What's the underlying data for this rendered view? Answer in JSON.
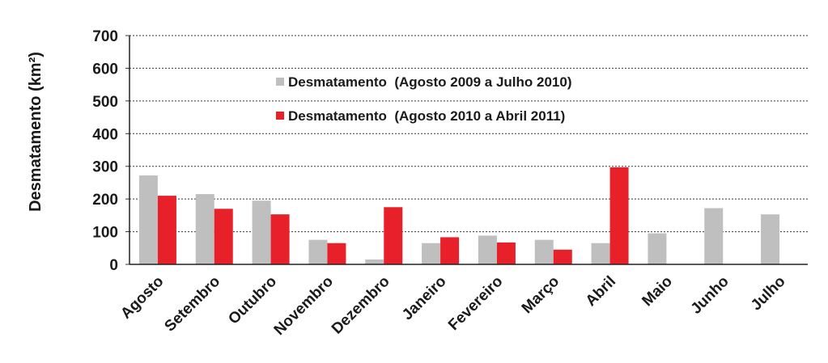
{
  "chart_data": {
    "type": "bar",
    "ylabel": "Desmatamento (km²)",
    "xlabel": "",
    "title": "",
    "ylim": [
      0,
      700
    ],
    "yticks": [
      0,
      100,
      200,
      300,
      400,
      500,
      600,
      700
    ],
    "grid": true,
    "legend_position": "top-center",
    "categories": [
      "Agosto",
      "Setembro",
      "Outubro",
      "Novembro",
      "Dezembro",
      "Janeiro",
      "Fevereiro",
      "Março",
      "Abril",
      "Maio",
      "Junho",
      "Julho"
    ],
    "series": [
      {
        "name": "Desmatamento  (Agosto 2009 a Julho 2010)",
        "color": "#bfbfbf",
        "values": [
          272,
          215,
          195,
          75,
          15,
          65,
          88,
          75,
          65,
          95,
          172,
          153
        ]
      },
      {
        "name": "Desmatamento  (Agosto 2010 a Abril 2011)",
        "color": "#e8202a",
        "values": [
          210,
          170,
          153,
          65,
          175,
          83,
          67,
          45,
          297,
          null,
          null,
          null
        ]
      }
    ]
  }
}
